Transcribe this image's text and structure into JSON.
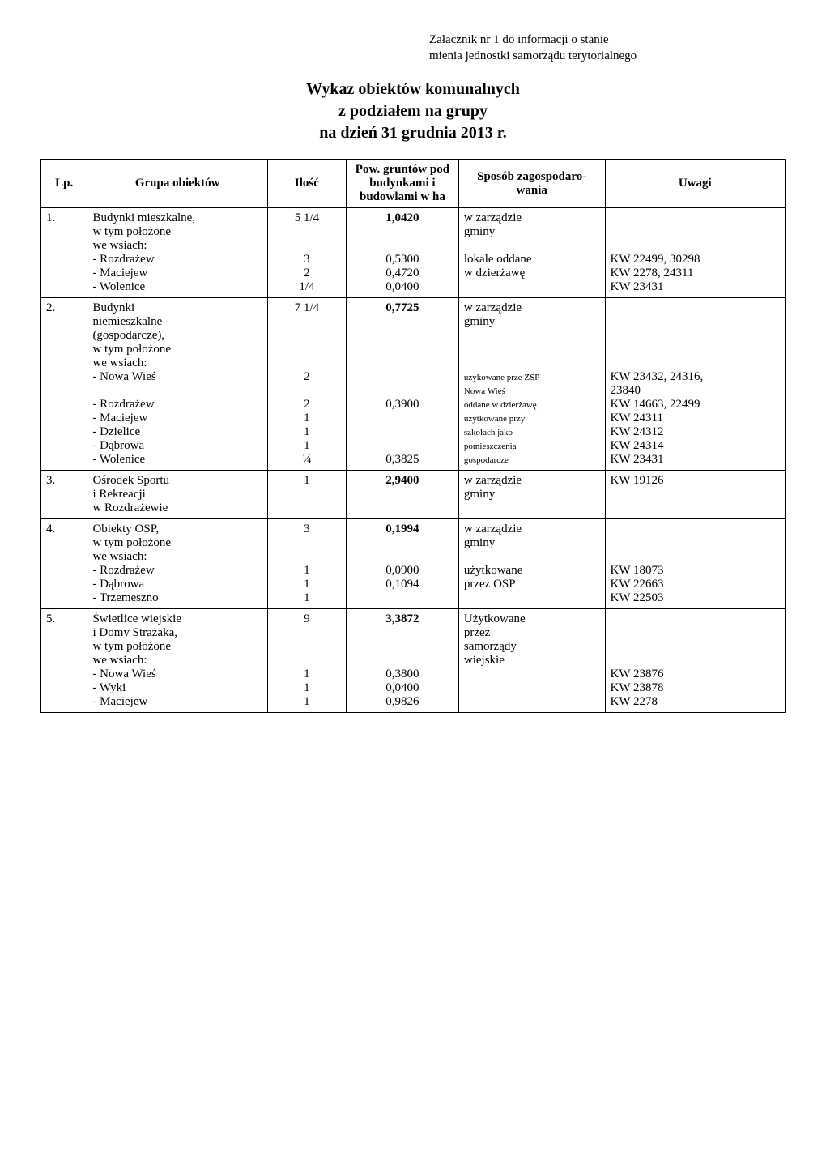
{
  "header": {
    "line1": "Załącznik nr 1 do informacji o stanie",
    "line2": "mienia jednostki samorządu terytorialnego"
  },
  "title": {
    "line1": "Wykaz obiektów komunalnych",
    "line2": "z podziałem na grupy",
    "line3": "na dzień 31 grudnia 2013 r."
  },
  "columns": {
    "lp": "Lp.",
    "grupa": "Grupa obiektów",
    "ilosc": "Ilość",
    "pow": "Pow. gruntów pod budynkami i budowlami w ha",
    "sposob": "Sposób zagospodaro-wania",
    "uwagi": "Uwagi"
  },
  "rows": [
    {
      "lp": "1.",
      "grupa_lines": [
        "Budynki mieszkalne,",
        "w tym położone",
        "we wsiach:",
        "- Rozdrażew",
        "- Maciejew",
        "- Wolenice"
      ],
      "ilosc_lines": [
        "5 1/4",
        "",
        "",
        "3",
        "2",
        "1/4"
      ],
      "pow_lines": [
        {
          "t": "1,0420",
          "b": true
        },
        {
          "t": ""
        },
        {
          "t": ""
        },
        {
          "t": "0,5300"
        },
        {
          "t": "0,4720"
        },
        {
          "t": "0,0400"
        }
      ],
      "sposob_lines": [
        "w zarządzie",
        "gminy",
        "",
        "lokale oddane",
        "w dzierżawę"
      ],
      "uwagi_lines": [
        "",
        "",
        "",
        "KW 22499, 30298",
        "KW 2278, 24311",
        "KW 23431"
      ]
    },
    {
      "lp": "2.",
      "grupa_lines": [
        "Budynki",
        "niemieszkalne",
        "(gospodarcze),",
        "w tym położone",
        "we wsiach:",
        "- Nowa Wieś",
        "",
        "- Rozdrażew",
        "- Maciejew",
        "- Dzielice",
        "- Dąbrowa",
        "- Wolenice"
      ],
      "ilosc_lines": [
        "7 1/4",
        "",
        "",
        "",
        "",
        "2",
        "",
        "2",
        "1",
        "1",
        "1",
        "¼"
      ],
      "pow_lines": [
        {
          "t": "0,7725",
          "b": true
        },
        {
          "t": ""
        },
        {
          "t": ""
        },
        {
          "t": ""
        },
        {
          "t": ""
        },
        {
          "t": ""
        },
        {
          "t": ""
        },
        {
          "t": "0,3900"
        },
        {
          "t": ""
        },
        {
          "t": ""
        },
        {
          "t": ""
        },
        {
          "t": "0,3825"
        }
      ],
      "sposob_blocks": [
        {
          "lines": [
            "w zarządzie",
            "gminy"
          ]
        },
        {
          "blank": 3
        },
        {
          "lines": [
            "uzykowane prze ZSP",
            "Nowa Wieś"
          ],
          "small": true
        },
        {
          "blank_half": true
        },
        {
          "lines": [
            "oddane w dzierżawę",
            "użytkowane przy",
            "szkołach jako",
            "pomieszczenia",
            "gospodarcze"
          ],
          "small": true
        }
      ],
      "uwagi_lines": [
        "",
        "",
        "",
        "",
        "",
        "KW 23432, 24316,",
        "23840",
        "KW 14663, 22499",
        "KW 24311",
        "KW 24312",
        "KW 24314",
        "KW 23431"
      ]
    },
    {
      "lp": "3.",
      "grupa_lines": [
        "Ośrodek Sportu",
        "i Rekreacji",
        "w Rozdrażewie"
      ],
      "ilosc_lines": [
        "1"
      ],
      "pow_lines": [
        {
          "t": "2,9400",
          "b": true
        }
      ],
      "sposob_lines": [
        "w zarządzie",
        "gminy"
      ],
      "uwagi_lines": [
        "KW 19126"
      ]
    },
    {
      "lp": "4.",
      "grupa_lines": [
        "Obiekty OSP,",
        "w tym położone",
        "we wsiach:",
        "- Rozdrażew",
        "- Dąbrowa",
        "- Trzemeszno"
      ],
      "ilosc_lines": [
        "3",
        "",
        "",
        "1",
        "1",
        "1"
      ],
      "pow_lines": [
        {
          "t": "0,1994",
          "b": true
        },
        {
          "t": ""
        },
        {
          "t": ""
        },
        {
          "t": "0,0900"
        },
        {
          "t": "0,1094"
        }
      ],
      "sposob_lines": [
        "w zarządzie",
        "gminy",
        "",
        "użytkowane",
        "przez OSP"
      ],
      "uwagi_lines": [
        "",
        "",
        "",
        "KW 18073",
        "KW 22663",
        "KW 22503"
      ]
    },
    {
      "lp": "5.",
      "grupa_lines": [
        "Świetlice wiejskie",
        "i Domy Strażaka,",
        "w tym położone",
        "we wsiach:",
        "- Nowa Wieś",
        "- Wyki",
        "- Maciejew"
      ],
      "ilosc_lines": [
        "9",
        "",
        "",
        "",
        "1",
        "1",
        "1"
      ],
      "pow_lines": [
        {
          "t": "3,3872",
          "b": true
        },
        {
          "t": ""
        },
        {
          "t": ""
        },
        {
          "t": ""
        },
        {
          "t": "0,3800"
        },
        {
          "t": "0,0400"
        },
        {
          "t": "0,9826"
        }
      ],
      "sposob_lines": [
        "Użytkowane",
        "przez",
        "samorządy",
        "wiejskie"
      ],
      "uwagi_lines": [
        "",
        "",
        "",
        "",
        "KW 23876",
        "KW 23878",
        "KW 2278"
      ]
    }
  ]
}
